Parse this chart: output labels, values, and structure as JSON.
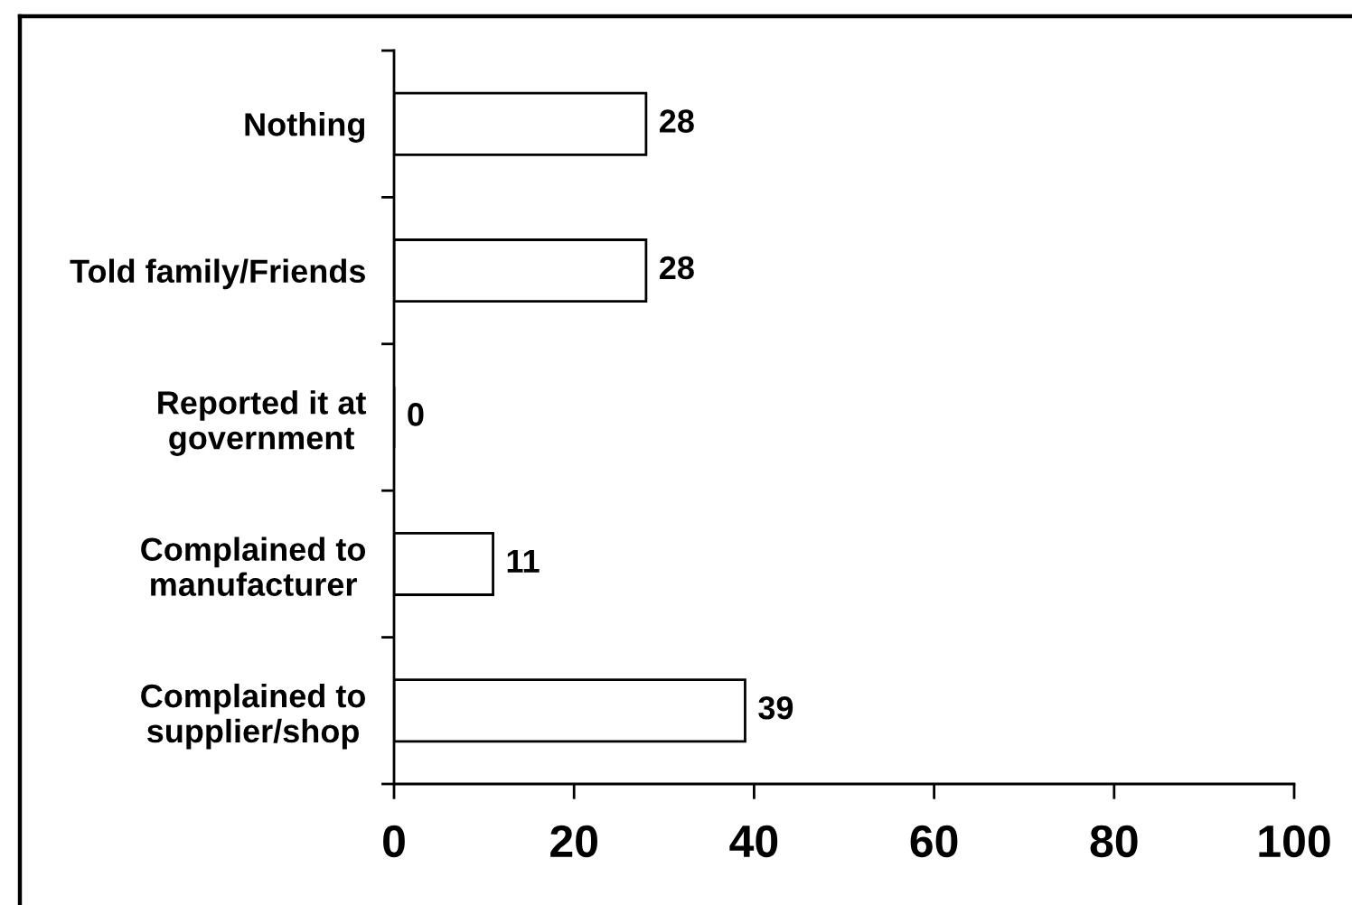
{
  "chart_data": {
    "type": "bar",
    "orientation": "horizontal",
    "categories": [
      "Nothing",
      "Told family/Friends",
      "Reported it at\ngovernment",
      "Complained to\nmanufacturer",
      "Complained to\nsupplier/shop"
    ],
    "values": [
      28,
      28,
      0,
      11,
      39
    ],
    "color": "#ffffff",
    "xlim": [
      0,
      100
    ],
    "xticks": [
      0,
      20,
      40,
      60,
      80,
      100
    ],
    "data_labels": true
  }
}
